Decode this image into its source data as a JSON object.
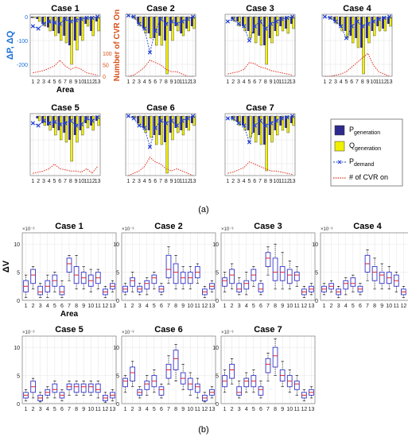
{
  "panel_a_label": "(a)",
  "panel_b_label": "(b)",
  "chart_data": [
    {
      "type": "bar",
      "panel": "a",
      "ylabel_left": "ΔP, ΔQ",
      "ylabel_right": "Number of CVR On",
      "xlabel": "Area",
      "categories": [
        "1",
        "2",
        "3",
        "4",
        "5",
        "6",
        "7",
        "8",
        "9",
        "10",
        "11",
        "12",
        "13"
      ],
      "left_ylim": [
        -250,
        10
      ],
      "left_yticks": [
        0,
        -100,
        -200
      ],
      "right_ylim": [
        0,
        270
      ],
      "right_yticks": [
        0,
        50,
        100
      ],
      "legend": {
        "placement": "right",
        "entries": [
          {
            "name": "P",
            "sub": "generation",
            "color": "#2e2a8c",
            "kind": "bar"
          },
          {
            "name": "Q",
            "sub": "generation",
            "color": "#f0f000",
            "kind": "bar"
          },
          {
            "name": "P",
            "sub": "demand",
            "color": "#1f3fd6",
            "kind": "x-line"
          },
          {
            "name": "# of CVR on",
            "sub": "",
            "color": "#e03020",
            "kind": "dot-line"
          }
        ]
      },
      "charts": [
        {
          "title": "Case 1",
          "p_gen": [
            -5,
            -10,
            -30,
            -45,
            -60,
            -70,
            -80,
            -120,
            -100,
            -80,
            -30,
            -60,
            -20
          ],
          "q_gen": [
            -5,
            -20,
            -40,
            -60,
            -80,
            -100,
            -110,
            -200,
            -140,
            -100,
            -40,
            -80,
            -60
          ],
          "p_demand": [
            -40,
            -50,
            -30,
            -20,
            -25,
            -30,
            -10,
            -20,
            -15,
            -10,
            -5,
            -5,
            0
          ],
          "cvr_on": [
            15,
            20,
            25,
            35,
            45,
            70,
            45,
            30,
            40,
            30,
            15,
            10,
            5
          ]
        },
        {
          "title": "Case 2",
          "p_gen": [
            0,
            -5,
            -30,
            -50,
            -70,
            -90,
            -80,
            -100,
            -60,
            -40,
            -70,
            -50,
            -40
          ],
          "q_gen": [
            0,
            -10,
            -40,
            -70,
            -90,
            -120,
            -120,
            -240,
            -100,
            -60,
            -80,
            -60,
            -50
          ],
          "p_demand": [
            5,
            0,
            -30,
            -50,
            -150,
            -60,
            -10,
            -30,
            -20,
            -30,
            -20,
            -10,
            0
          ],
          "cvr_on": [
            0,
            5,
            20,
            40,
            70,
            60,
            50,
            30,
            20,
            20,
            10,
            0,
            0
          ]
        },
        {
          "title": "Case 3",
          "p_gen": [
            0,
            -10,
            -20,
            -40,
            -60,
            -70,
            -80,
            -120,
            -90,
            -60,
            -40,
            -50,
            -30
          ],
          "q_gen": [
            0,
            -20,
            -40,
            -60,
            -90,
            -110,
            -120,
            -200,
            -110,
            -80,
            -60,
            -70,
            -50
          ],
          "p_demand": [
            -20,
            -10,
            -30,
            -40,
            -100,
            -40,
            -20,
            -50,
            -30,
            -20,
            -10,
            -5,
            0
          ],
          "cvr_on": [
            10,
            15,
            20,
            30,
            60,
            55,
            40,
            35,
            25,
            20,
            15,
            10,
            5
          ]
        },
        {
          "title": "Case 4",
          "p_gen": [
            0,
            -5,
            -20,
            -40,
            -60,
            -80,
            -90,
            -130,
            -90,
            -60,
            -40,
            -50,
            -30
          ],
          "q_gen": [
            0,
            -10,
            -30,
            -60,
            -90,
            -110,
            -130,
            -240,
            -110,
            -80,
            -60,
            -60,
            -40
          ],
          "p_demand": [
            0,
            -5,
            -20,
            -40,
            -90,
            -40,
            -20,
            -40,
            -30,
            -20,
            -10,
            -5,
            0
          ],
          "cvr_on": [
            0,
            0,
            5,
            10,
            20,
            40,
            60,
            80,
            100,
            50,
            20,
            10,
            0
          ]
        },
        {
          "title": "Case 5",
          "p_gen": [
            0,
            -10,
            -30,
            -40,
            -50,
            -60,
            -70,
            -100,
            -80,
            -60,
            -30,
            -40,
            -20
          ],
          "q_gen": [
            0,
            -20,
            -40,
            -60,
            -80,
            -100,
            -110,
            -190,
            -110,
            -80,
            -50,
            -60,
            -40
          ],
          "p_demand": [
            -30,
            -40,
            -20,
            -30,
            -25,
            -35,
            -30,
            -20,
            -40,
            -35,
            -10,
            -20,
            -5
          ],
          "cvr_on": [
            10,
            15,
            20,
            30,
            50,
            30,
            25,
            20,
            20,
            15,
            30,
            10,
            40
          ]
        },
        {
          "title": "Case 6",
          "p_gen": [
            0,
            -5,
            -30,
            -50,
            -60,
            -80,
            -80,
            -110,
            -70,
            -50,
            -60,
            -50,
            -30
          ],
          "q_gen": [
            0,
            -10,
            -40,
            -70,
            -90,
            -120,
            -120,
            -240,
            -100,
            -70,
            -80,
            -60,
            -40
          ],
          "p_demand": [
            0,
            -10,
            -40,
            -50,
            -130,
            -50,
            -20,
            -30,
            -20,
            -40,
            -20,
            -10,
            0
          ],
          "cvr_on": [
            0,
            10,
            20,
            40,
            80,
            60,
            50,
            30,
            20,
            30,
            20,
            10,
            0
          ]
        },
        {
          "title": "Case 7",
          "p_gen": [
            0,
            -10,
            -25,
            -40,
            -60,
            -70,
            -80,
            -120,
            -80,
            -60,
            -40,
            -50,
            -30
          ],
          "q_gen": [
            0,
            -20,
            -40,
            -60,
            -90,
            -110,
            -120,
            -230,
            -110,
            -80,
            -60,
            -70,
            -40
          ],
          "p_demand": [
            -10,
            -10,
            -30,
            -40,
            -110,
            -40,
            -20,
            -40,
            -30,
            -20,
            -10,
            -5,
            0
          ],
          "cvr_on": [
            10,
            15,
            25,
            35,
            60,
            50,
            40,
            30,
            20,
            20,
            15,
            10,
            5
          ]
        }
      ]
    },
    {
      "type": "box",
      "panel": "b",
      "ylabel": "ΔV",
      "xlabel": "Area",
      "exponent": "×10⁻³",
      "categories": [
        "1",
        "2",
        "3",
        "4",
        "5",
        "6",
        "7",
        "8",
        "9",
        "10",
        "11",
        "12",
        "13"
      ],
      "ylim": [
        0,
        12
      ],
      "yticks": [
        0,
        5,
        10
      ],
      "charts": [
        {
          "title": "Case 1",
          "median": [
            2.5,
            4.5,
            1.5,
            2.5,
            3.5,
            1.5,
            6.5,
            4.5,
            4.0,
            3.5,
            4.0,
            1.5,
            2.5
          ],
          "q1": [
            1.5,
            3.0,
            1.0,
            1.5,
            2.5,
            1.0,
            5.0,
            3.0,
            3.0,
            2.5,
            3.0,
            1.0,
            2.0
          ],
          "q3": [
            3.5,
            5.5,
            2.5,
            3.5,
            4.5,
            2.5,
            7.5,
            6.0,
            5.0,
            4.5,
            5.0,
            2.0,
            3.0
          ],
          "min": [
            0.5,
            2.0,
            0.5,
            0.5,
            1.5,
            0.5,
            3.5,
            2.0,
            2.0,
            1.5,
            2.0,
            0.5,
            1.5
          ],
          "max": [
            4.5,
            6.0,
            3.0,
            4.5,
            5.0,
            3.5,
            8.0,
            8.0,
            6.0,
            5.5,
            5.5,
            2.5,
            3.5
          ]
        },
        {
          "title": "Case 2",
          "median": [
            2.0,
            3.5,
            2.0,
            3.0,
            4.0,
            2.0,
            5.5,
            5.0,
            4.0,
            4.0,
            5.0,
            1.5,
            2.5
          ],
          "q1": [
            1.5,
            2.5,
            1.5,
            2.0,
            3.0,
            1.5,
            4.0,
            3.0,
            3.0,
            3.0,
            4.0,
            1.0,
            2.0
          ],
          "q3": [
            2.5,
            4.0,
            2.5,
            3.5,
            4.5,
            2.5,
            8.0,
            6.5,
            5.0,
            5.0,
            6.0,
            2.0,
            3.0
          ],
          "min": [
            1.0,
            1.5,
            1.0,
            1.0,
            2.0,
            1.0,
            3.0,
            2.0,
            2.0,
            2.0,
            3.0,
            0.5,
            1.5
          ],
          "max": [
            3.0,
            5.0,
            3.0,
            4.0,
            5.0,
            3.0,
            9.5,
            8.0,
            6.0,
            6.0,
            6.5,
            2.5,
            3.5
          ]
        },
        {
          "title": "Case 3",
          "median": [
            3.5,
            4.5,
            2.0,
            3.0,
            4.5,
            2.0,
            7.5,
            5.0,
            5.0,
            4.5,
            4.5,
            1.5,
            2.0
          ],
          "q1": [
            2.5,
            3.0,
            1.5,
            2.0,
            3.5,
            1.5,
            6.0,
            3.5,
            3.5,
            3.0,
            3.5,
            1.0,
            1.5
          ],
          "q3": [
            4.0,
            5.5,
            3.0,
            3.5,
            5.5,
            3.0,
            8.5,
            7.5,
            6.0,
            5.5,
            5.0,
            2.0,
            2.5
          ],
          "min": [
            1.5,
            2.0,
            1.0,
            1.0,
            2.5,
            1.0,
            4.5,
            2.0,
            2.0,
            2.0,
            2.5,
            0.5,
            1.0
          ],
          "max": [
            5.0,
            6.5,
            4.0,
            5.0,
            6.0,
            3.5,
            9.5,
            10.0,
            8.5,
            7.0,
            6.0,
            2.5,
            3.0
          ]
        },
        {
          "title": "Case 4",
          "median": [
            2.0,
            2.5,
            1.5,
            3.0,
            3.0,
            2.0,
            6.5,
            5.0,
            4.5,
            4.0,
            3.5,
            1.5,
            2.0
          ],
          "q1": [
            1.5,
            2.0,
            1.0,
            2.0,
            2.5,
            1.5,
            5.0,
            3.5,
            3.0,
            3.0,
            2.5,
            1.0,
            1.5
          ],
          "q3": [
            2.5,
            3.0,
            2.0,
            3.5,
            4.0,
            2.5,
            8.0,
            6.0,
            5.0,
            5.0,
            4.5,
            2.0,
            2.5
          ],
          "min": [
            1.0,
            1.5,
            0.5,
            1.0,
            1.5,
            1.0,
            3.5,
            2.0,
            2.0,
            2.0,
            1.5,
            0.5,
            1.0
          ],
          "max": [
            3.0,
            3.5,
            2.5,
            4.0,
            4.5,
            3.0,
            9.0,
            7.5,
            6.5,
            6.0,
            5.0,
            2.5,
            3.0
          ]
        },
        {
          "title": "Case 5",
          "median": [
            1.5,
            3.0,
            1.0,
            2.0,
            2.5,
            1.5,
            3.0,
            3.0,
            3.0,
            3.0,
            2.5,
            1.0,
            1.5
          ],
          "q1": [
            1.0,
            2.0,
            0.5,
            1.5,
            2.0,
            1.0,
            2.5,
            2.0,
            2.0,
            2.0,
            2.0,
            0.5,
            1.0
          ],
          "q3": [
            2.0,
            4.0,
            1.5,
            2.5,
            3.5,
            2.0,
            3.5,
            3.5,
            3.5,
            3.5,
            3.5,
            1.5,
            2.0
          ],
          "min": [
            0.5,
            1.0,
            0.3,
            1.0,
            1.0,
            0.5,
            1.5,
            1.5,
            1.5,
            1.5,
            1.0,
            0.2,
            0.5
          ],
          "max": [
            2.5,
            4.5,
            2.0,
            3.0,
            4.0,
            2.5,
            4.0,
            4.0,
            4.0,
            4.0,
            4.0,
            2.0,
            2.5
          ]
        },
        {
          "title": "Case 6",
          "median": [
            4.0,
            5.5,
            2.0,
            3.5,
            4.0,
            2.5,
            6.0,
            8.0,
            4.5,
            3.5,
            3.0,
            1.0,
            2.0
          ],
          "q1": [
            3.0,
            4.0,
            1.5,
            2.5,
            3.0,
            1.5,
            4.5,
            6.0,
            3.5,
            2.5,
            2.0,
            0.5,
            1.5
          ],
          "q3": [
            4.5,
            6.5,
            2.5,
            4.0,
            5.0,
            3.0,
            7.0,
            9.5,
            5.5,
            4.5,
            3.5,
            1.5,
            2.5
          ],
          "min": [
            2.0,
            3.0,
            1.0,
            1.5,
            2.0,
            1.0,
            3.5,
            4.0,
            2.5,
            1.5,
            1.0,
            0.3,
            1.0
          ],
          "max": [
            5.0,
            7.5,
            3.0,
            5.0,
            6.0,
            3.5,
            8.5,
            10.5,
            7.0,
            5.5,
            4.5,
            2.0,
            3.0
          ]
        },
        {
          "title": "Case 7",
          "median": [
            4.0,
            6.0,
            2.0,
            4.0,
            4.0,
            2.5,
            7.0,
            8.5,
            5.0,
            4.0,
            3.5,
            1.5,
            2.0
          ],
          "q1": [
            3.0,
            4.5,
            1.5,
            3.0,
            3.0,
            1.5,
            5.5,
            6.5,
            4.0,
            3.0,
            2.5,
            1.0,
            1.5
          ],
          "q3": [
            5.0,
            7.0,
            3.0,
            4.5,
            5.0,
            3.0,
            8.0,
            10.0,
            6.0,
            5.0,
            4.0,
            2.0,
            2.5
          ],
          "min": [
            2.0,
            3.5,
            1.0,
            2.0,
            2.0,
            1.0,
            4.0,
            5.0,
            3.0,
            2.0,
            1.5,
            0.5,
            1.0
          ],
          "max": [
            6.0,
            8.0,
            4.0,
            5.5,
            6.0,
            4.0,
            9.0,
            11.5,
            7.5,
            6.0,
            5.0,
            2.5,
            3.0
          ]
        }
      ]
    }
  ]
}
